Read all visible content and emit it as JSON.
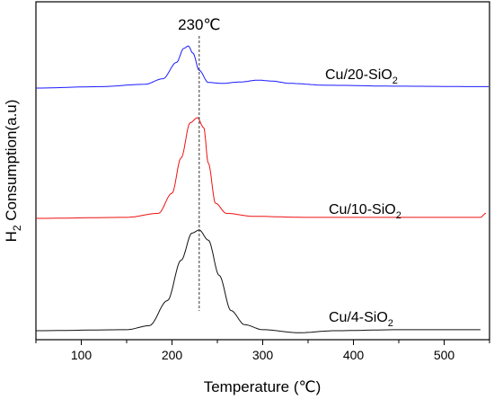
{
  "chart_data": {
    "type": "line",
    "title": "",
    "xlabel": "Temperature (℃)",
    "ylabel_main": "H",
    "ylabel_sub": "2",
    "ylabel_rest": " Consumption(a.u)",
    "xlim": [
      50,
      550
    ],
    "x_ticks": [
      100,
      200,
      300,
      400,
      500
    ],
    "x_tick_labels": [
      "100",
      "200",
      "300",
      "400",
      "500"
    ],
    "y_ticks_shown": false,
    "grid": false,
    "annotation": {
      "text": "230℃",
      "x": 230,
      "style": "dashed vertical line"
    },
    "series": [
      {
        "name_main": "Cu/20-SiO",
        "name_sub": "2",
        "color": "#1a1aff",
        "baseline": 0.0,
        "offset_level": "top",
        "points": [
          [
            50,
            0
          ],
          [
            120,
            0.03
          ],
          [
            170,
            0.08
          ],
          [
            190,
            0.2
          ],
          [
            205,
            0.55
          ],
          [
            213,
            0.85
          ],
          [
            218,
            0.9
          ],
          [
            223,
            0.75
          ],
          [
            230,
            0.38
          ],
          [
            240,
            0.12
          ],
          [
            255,
            0.1
          ],
          [
            275,
            0.13
          ],
          [
            295,
            0.17
          ],
          [
            310,
            0.15
          ],
          [
            330,
            0.1
          ],
          [
            370,
            0.06
          ],
          [
            450,
            0.04
          ],
          [
            549,
            0.03
          ]
        ]
      },
      {
        "name_main": "Cu/10-SiO",
        "name_sub": "2",
        "color": "#ee1111",
        "baseline": 0.0,
        "offset_level": "middle",
        "points": [
          [
            50,
            0
          ],
          [
            150,
            0.01
          ],
          [
            185,
            0.05
          ],
          [
            200,
            0.25
          ],
          [
            210,
            0.6
          ],
          [
            220,
            0.95
          ],
          [
            228,
            1.0
          ],
          [
            235,
            0.9
          ],
          [
            240,
            0.55
          ],
          [
            248,
            0.15
          ],
          [
            260,
            0.05
          ],
          [
            290,
            0.02
          ],
          [
            350,
            0.01
          ],
          [
            450,
            0.01
          ],
          [
            540,
            0.01
          ],
          [
            546,
            0.05
          ]
        ]
      },
      {
        "name_main": "Cu/4-SiO",
        "name_sub": "2",
        "color": "#111111",
        "baseline": 0.0,
        "offset_level": "bottom",
        "points": [
          [
            50,
            0
          ],
          [
            150,
            0.01
          ],
          [
            175,
            0.05
          ],
          [
            195,
            0.3
          ],
          [
            210,
            0.7
          ],
          [
            222,
            0.97
          ],
          [
            230,
            1.0
          ],
          [
            240,
            0.9
          ],
          [
            252,
            0.55
          ],
          [
            265,
            0.2
          ],
          [
            280,
            0.06
          ],
          [
            300,
            0.01
          ],
          [
            340,
            -0.02
          ],
          [
            380,
            0.0
          ],
          [
            450,
            0.01
          ],
          [
            540,
            0.01
          ]
        ]
      }
    ]
  }
}
